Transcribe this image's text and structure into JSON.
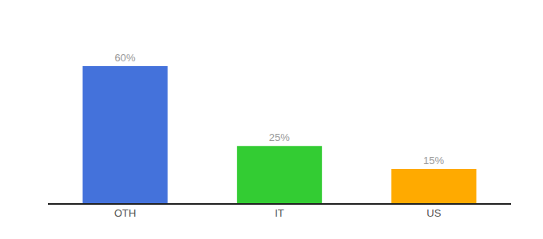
{
  "chart_data": {
    "type": "bar",
    "categories": [
      "OTH",
      "IT",
      "US"
    ],
    "values": [
      60,
      25,
      15
    ],
    "value_labels": [
      "60%",
      "25%",
      "15%"
    ],
    "data_labels": true,
    "colors": [
      "#4472db",
      "#33cc33",
      "#ffaa00"
    ],
    "ylim": [
      0,
      75
    ],
    "grid": false,
    "tick_labels": "x"
  }
}
